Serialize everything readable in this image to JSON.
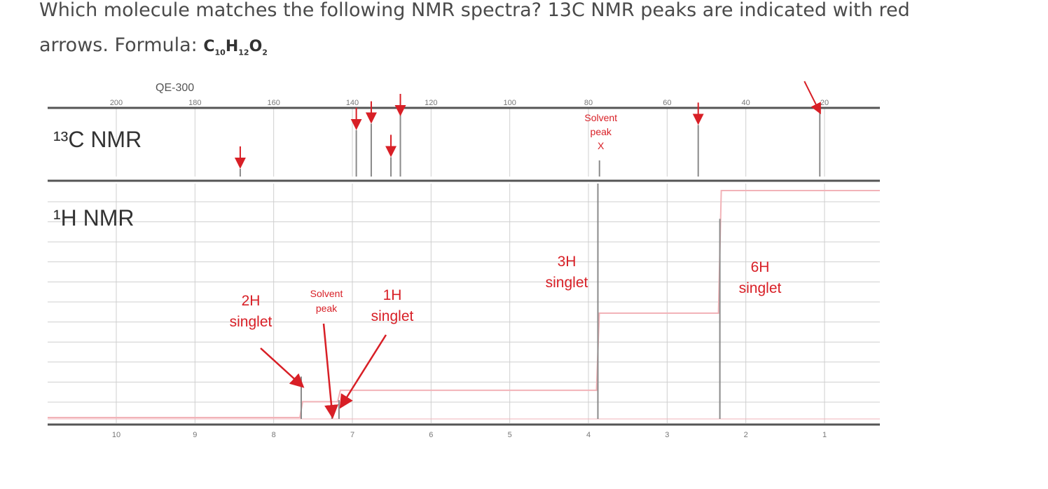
{
  "question": {
    "line1": "Which molecule matches the following NMR spectra? 13C NMR peaks are indicated with red",
    "line2_prefix": "arrows.  Formula: ",
    "formula": {
      "c": "C",
      "c_sub": "10",
      "h": "H",
      "h_sub": "12",
      "o": "O",
      "o_sub": "2"
    }
  },
  "colors": {
    "axis": "#555555",
    "grid": "#cfcfcf",
    "peak": "#8a8a8a",
    "annotation": "#d81f26",
    "integral": "#f2b3b8"
  },
  "chart_data": [
    {
      "type": "line",
      "name": "13C NMR",
      "instrument_label": "QE-300",
      "panel_label": "¹³C NMR",
      "x_axis_ticks": [
        "200",
        "180",
        "160",
        "140",
        "120",
        "100",
        "80",
        "60",
        "40",
        "20"
      ],
      "x_tick_values": [
        200,
        180,
        160,
        140,
        120,
        100,
        80,
        60,
        40,
        20
      ],
      "xlim": [
        210,
        0
      ],
      "xscale_reversed": true,
      "peaks": [
        {
          "ppm": 168.5,
          "height": 0.12,
          "arrow": true
        },
        {
          "ppm": 139.0,
          "height": 0.72,
          "arrow": true
        },
        {
          "ppm": 135.2,
          "height": 0.82,
          "arrow": true
        },
        {
          "ppm": 130.2,
          "height": 0.3,
          "arrow": true
        },
        {
          "ppm": 127.8,
          "height": 1.0,
          "arrow": true
        },
        {
          "ppm": 77.2,
          "height": 0.25,
          "arrow": false,
          "solvent": true
        },
        {
          "ppm": 52.1,
          "height": 0.8,
          "arrow": true
        },
        {
          "ppm": 21.2,
          "height": 1.0,
          "arrow": true
        }
      ],
      "annotations": [
        {
          "ppm": 77.2,
          "text_lines": [
            "Solvent",
            "peak",
            "X"
          ]
        }
      ]
    },
    {
      "type": "line",
      "name": "1H NMR",
      "panel_label": "¹H NMR",
      "x_axis_ticks": [
        "10",
        "9",
        "8",
        "7",
        "6",
        "5",
        "4",
        "3",
        "2",
        "1"
      ],
      "x_tick_values": [
        10,
        9,
        8,
        7,
        6,
        5,
        4,
        3,
        2,
        1
      ],
      "xlim": [
        10.5,
        0
      ],
      "xscale_reversed": true,
      "peaks": [
        {
          "ppm": 7.65,
          "height": 0.18,
          "label": [
            "2H",
            "singlet"
          ]
        },
        {
          "ppm": 7.26,
          "height": 0.06,
          "label": [
            "Solvent",
            "peak"
          ],
          "solvent": true
        },
        {
          "ppm": 7.17,
          "height": 0.08,
          "label": [
            "1H",
            "singlet"
          ]
        },
        {
          "ppm": 3.88,
          "height": 1.0,
          "label": [
            "3H",
            "singlet"
          ]
        },
        {
          "ppm": 2.33,
          "height": 0.85,
          "label": [
            "6H",
            "singlet"
          ]
        }
      ],
      "integral_steps": [
        {
          "ppm": 7.65,
          "level": 0.07
        },
        {
          "ppm": 7.17,
          "level": 0.12
        },
        {
          "ppm": 3.88,
          "level": 0.46
        },
        {
          "ppm": 2.33,
          "level": 1.0
        }
      ]
    }
  ]
}
